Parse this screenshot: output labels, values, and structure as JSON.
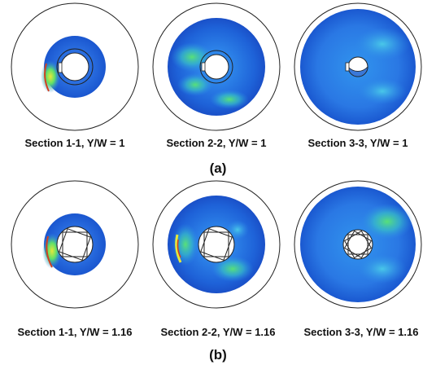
{
  "row_a": {
    "captions": [
      "Section 1-1, Y/W = 1",
      "Section 2-2, Y/W = 1",
      "Section 3-3, Y/W = 1"
    ],
    "label": "(a)"
  },
  "row_b": {
    "captions": [
      "Section 1-1, Y/W = 1.16",
      "Section 2-2, Y/W = 1.16",
      "Section 3-3, Y/W = 1.16"
    ],
    "label": "(b)"
  },
  "colors": {
    "flow_low": "#1f5fd6",
    "flow_mid": "#3aa0f0",
    "flow_high": "#3fe070",
    "flow_peak": "#e8e83a",
    "flow_max": "#d04020",
    "outline": "#222222"
  }
}
